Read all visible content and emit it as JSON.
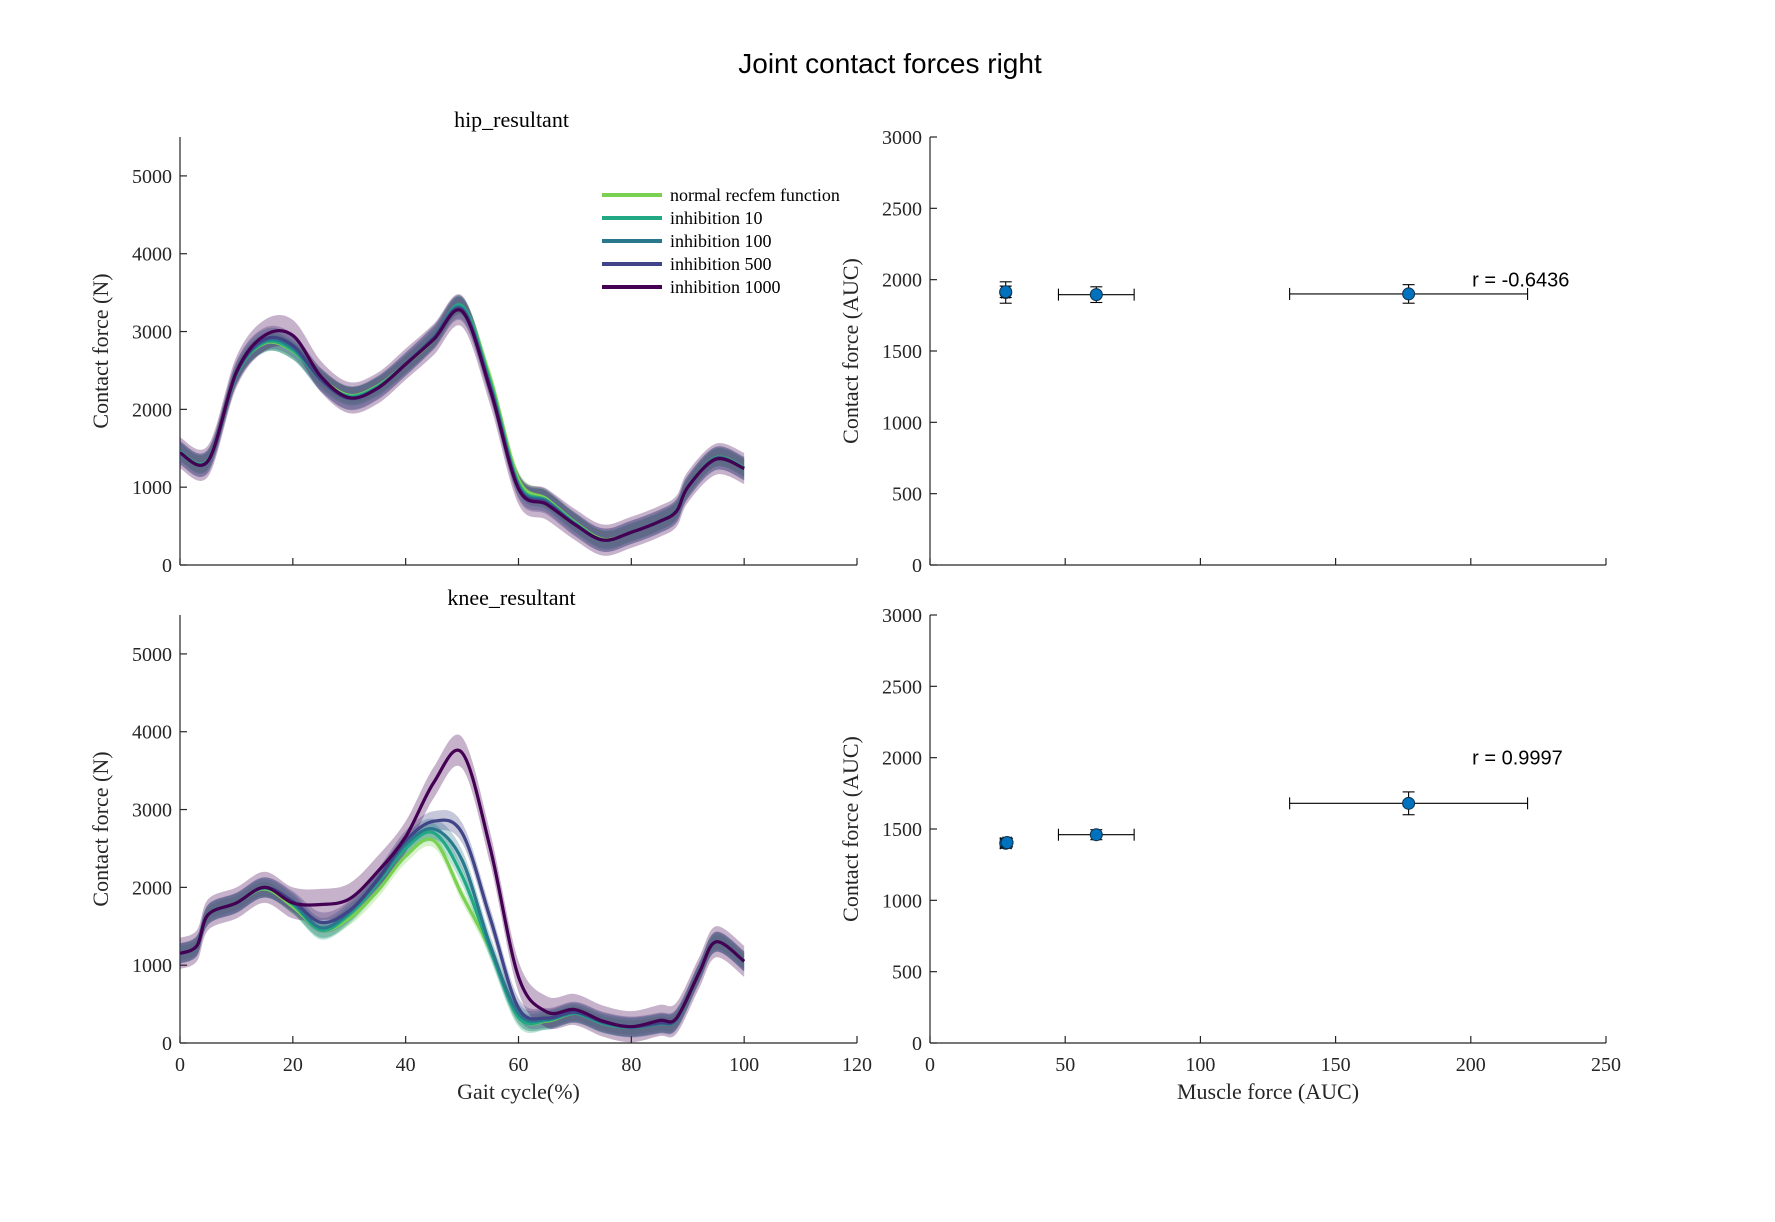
{
  "figure_title": "Joint contact forces right",
  "colors": {
    "normal": "#7ad151",
    "inh10": "#22a884",
    "inh100": "#2a788e",
    "inh500": "#414487",
    "inh1000": "#440154",
    "scatter_marker": "#0072bd"
  },
  "chart_data": [
    {
      "type": "line",
      "title": "hip_resultant",
      "xlabel": "",
      "ylabel": "Contact force (N)",
      "xlim": [
        0,
        120
      ],
      "ylim": [
        0,
        5500
      ],
      "xticks": [
        "0",
        "20",
        "40",
        "60",
        "80",
        "100",
        "120"
      ],
      "xtick_labels_shown": false,
      "yticks": [
        "0",
        "1000",
        "2000",
        "3000",
        "4000",
        "5000"
      ],
      "legend": {
        "placement": "top-right"
      },
      "x": [
        0,
        5,
        10,
        15,
        20,
        25,
        30,
        35,
        40,
        45,
        50,
        55,
        60,
        65,
        70,
        75,
        80,
        85,
        88,
        90,
        95,
        100
      ],
      "series": [
        {
          "name": "normal recfem function",
          "color_key": "normal",
          "values": [
            1450,
            1350,
            2450,
            2850,
            2750,
            2400,
            2180,
            2300,
            2580,
            2900,
            3320,
            2400,
            1100,
            850,
            550,
            330,
            420,
            560,
            700,
            1000,
            1380,
            1250
          ],
          "band": 110
        },
        {
          "name": "inhibition 10",
          "color_key": "inh10",
          "values": [
            1450,
            1350,
            2450,
            2860,
            2760,
            2380,
            2170,
            2290,
            2580,
            2920,
            3330,
            2350,
            1050,
            830,
            540,
            320,
            420,
            560,
            700,
            1000,
            1380,
            1250
          ],
          "band": 120
        },
        {
          "name": "inhibition 100",
          "color_key": "inh100",
          "values": [
            1440,
            1340,
            2460,
            2880,
            2790,
            2380,
            2150,
            2280,
            2580,
            2930,
            3300,
            2300,
            1020,
            820,
            530,
            320,
            420,
            560,
            700,
            1000,
            1370,
            1240
          ],
          "band": 150
        },
        {
          "name": "inhibition 500",
          "color_key": "inh500",
          "values": [
            1440,
            1340,
            2470,
            2900,
            2820,
            2380,
            2140,
            2270,
            2580,
            2920,
            3280,
            2280,
            1000,
            800,
            520,
            320,
            420,
            560,
            690,
            1000,
            1370,
            1240
          ],
          "band": 150
        },
        {
          "name": "inhibition 1000",
          "color_key": "inh1000",
          "values": [
            1440,
            1340,
            2480,
            2950,
            2950,
            2420,
            2150,
            2270,
            2580,
            2900,
            3260,
            2250,
            980,
            780,
            520,
            320,
            420,
            560,
            690,
            1000,
            1360,
            1240
          ],
          "band": 200
        }
      ]
    },
    {
      "type": "scatter",
      "title": "",
      "xlabel": "",
      "ylabel": "Contact force (AUC)",
      "xlim": [
        0,
        250
      ],
      "ylim": [
        0,
        3000
      ],
      "xticks": [
        "0",
        "50",
        "100",
        "150",
        "200",
        "250"
      ],
      "xtick_labels_shown": false,
      "yticks": [
        "0",
        "500",
        "1000",
        "1500",
        "2000",
        "2500",
        "3000"
      ],
      "annotation": "r = -0.6436",
      "points": [
        {
          "x": 28,
          "y": 1910,
          "xerr": 1.5,
          "yerr": 75
        },
        {
          "x": 28,
          "y": 1915,
          "xerr": 1,
          "yerr": 40
        },
        {
          "x": 61.5,
          "y": 1895,
          "xerr": 14,
          "yerr": 55
        },
        {
          "x": 177,
          "y": 1900,
          "xerr": 44,
          "yerr": 65
        }
      ]
    },
    {
      "type": "line",
      "title": "knee_resultant",
      "xlabel": "Gait cycle(%)",
      "ylabel": "Contact force (N)",
      "xlim": [
        0,
        120
      ],
      "ylim": [
        0,
        5500
      ],
      "xticks": [
        "0",
        "20",
        "40",
        "60",
        "80",
        "100",
        "120"
      ],
      "xtick_labels_shown": true,
      "yticks": [
        "0",
        "1000",
        "2000",
        "3000",
        "4000",
        "5000"
      ],
      "x": [
        0,
        3,
        5,
        10,
        15,
        20,
        25,
        30,
        35,
        40,
        45,
        50,
        55,
        60,
        65,
        70,
        75,
        80,
        85,
        88,
        92,
        95,
        100
      ],
      "series": [
        {
          "name": "normal recfem function",
          "color_key": "normal",
          "values": [
            1150,
            1250,
            1650,
            1800,
            1980,
            1750,
            1450,
            1600,
            1950,
            2400,
            2600,
            1900,
            1200,
            330,
            280,
            380,
            250,
            200,
            250,
            300,
            900,
            1300,
            1050
          ],
          "band": 90
        },
        {
          "name": "inhibition 10",
          "color_key": "inh10",
          "values": [
            1150,
            1250,
            1650,
            1800,
            1990,
            1780,
            1450,
            1650,
            2050,
            2500,
            2700,
            2150,
            1200,
            330,
            290,
            380,
            250,
            200,
            250,
            300,
            900,
            1300,
            1050
          ],
          "band": 120
        },
        {
          "name": "inhibition 100",
          "color_key": "inh100",
          "values": [
            1150,
            1250,
            1650,
            1800,
            2000,
            1800,
            1480,
            1680,
            2080,
            2550,
            2750,
            2350,
            1250,
            380,
            300,
            390,
            260,
            200,
            250,
            300,
            900,
            1300,
            1050
          ],
          "band": 130
        },
        {
          "name": "inhibition 500",
          "color_key": "inh500",
          "values": [
            1150,
            1250,
            1650,
            1800,
            2000,
            1820,
            1550,
            1700,
            2100,
            2600,
            2850,
            2700,
            1600,
            450,
            320,
            400,
            270,
            210,
            260,
            310,
            900,
            1300,
            1050
          ],
          "band": 130
        },
        {
          "name": "inhibition 1000",
          "color_key": "inh1000",
          "values": [
            1150,
            1250,
            1650,
            1800,
            2000,
            1800,
            1780,
            1850,
            2200,
            2650,
            3350,
            3730,
            2500,
            850,
            400,
            430,
            280,
            210,
            290,
            320,
            900,
            1300,
            1050
          ],
          "band": 200
        }
      ]
    },
    {
      "type": "scatter",
      "title": "",
      "xlabel": "Muscle force (AUC)",
      "ylabel": "Contact force (AUC)",
      "xlim": [
        0,
        250
      ],
      "ylim": [
        0,
        3000
      ],
      "xticks": [
        "0",
        "50",
        "100",
        "150",
        "200",
        "250"
      ],
      "xtick_labels_shown": true,
      "yticks": [
        "0",
        "500",
        "1000",
        "1500",
        "2000",
        "2500",
        "3000"
      ],
      "annotation": "r = 0.9997",
      "points": [
        {
          "x": 28,
          "y": 1400,
          "xerr": 2,
          "yerr": 35
        },
        {
          "x": 28.5,
          "y": 1405,
          "xerr": 1.5,
          "yerr": 30
        },
        {
          "x": 61.5,
          "y": 1460,
          "xerr": 14,
          "yerr": 35
        },
        {
          "x": 177,
          "y": 1680,
          "xerr": 44,
          "yerr": 80
        }
      ]
    }
  ]
}
